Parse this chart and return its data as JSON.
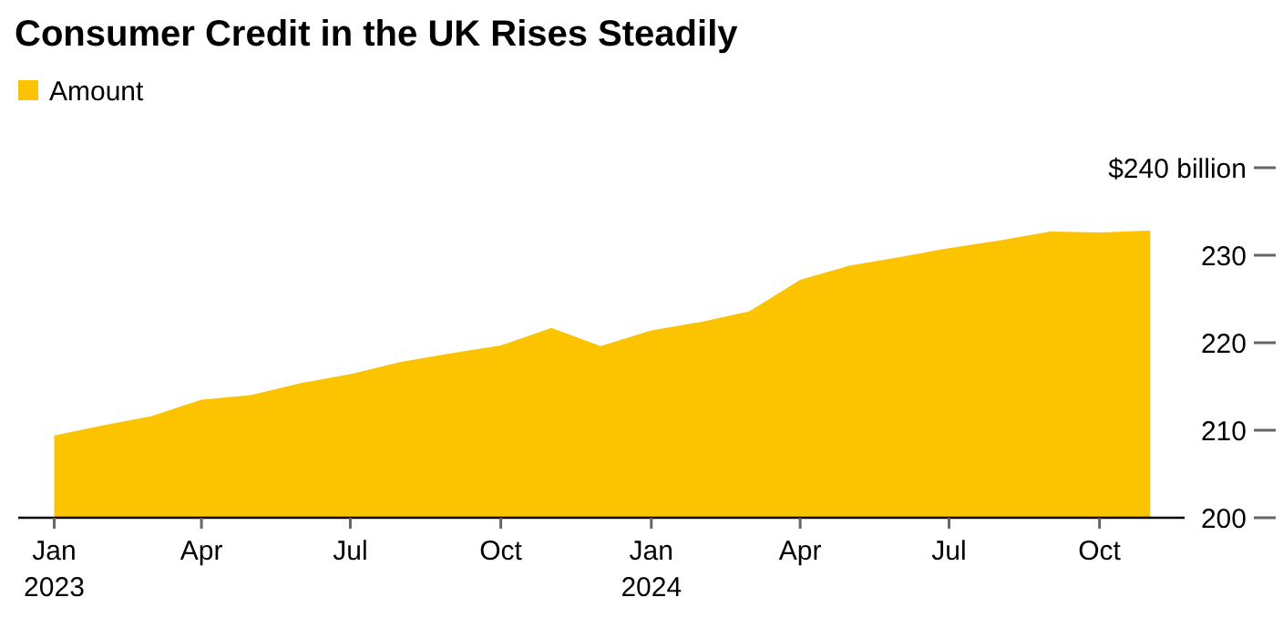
{
  "chart_data": {
    "type": "area",
    "title": "Consumer Credit in the UK Rises Steadily",
    "x": [
      "2023-01",
      "2023-02",
      "2023-03",
      "2023-04",
      "2023-05",
      "2023-06",
      "2023-07",
      "2023-08",
      "2023-09",
      "2023-10",
      "2023-11",
      "2023-12",
      "2024-01",
      "2024-02",
      "2024-03",
      "2024-04",
      "2024-05",
      "2024-06",
      "2024-07",
      "2024-08",
      "2024-09",
      "2024-10",
      "2024-11"
    ],
    "series": [
      {
        "name": "Amount",
        "color": "#fcc300",
        "values": [
          209.4,
          210.6,
          211.6,
          213.5,
          214.0,
          215.4,
          216.4,
          217.8,
          218.8,
          219.7,
          221.7,
          219.6,
          221.4,
          222.4,
          223.6,
          227.2,
          228.8,
          229.8,
          230.8,
          231.7,
          232.7,
          232.6,
          232.8
        ]
      }
    ],
    "xlim": [
      "2022-12-10",
      "2024-11-22"
    ],
    "xticks": [
      {
        "value": "2023-01",
        "label": "Jan\n2023"
      },
      {
        "value": "2023-04",
        "label": "Apr"
      },
      {
        "value": "2023-07",
        "label": "Jul"
      },
      {
        "value": "2023-10",
        "label": "Oct"
      },
      {
        "value": "2024-01",
        "label": "Jan\n2024"
      },
      {
        "value": "2024-04",
        "label": "Apr"
      },
      {
        "value": "2024-07",
        "label": "Jul"
      },
      {
        "value": "2024-10",
        "label": "Oct"
      }
    ],
    "ylim": [
      200,
      240
    ],
    "yticks": [
      200,
      210,
      220,
      230,
      {
        "value": 240,
        "label": "$240 billion"
      }
    ],
    "legend": "top left"
  }
}
